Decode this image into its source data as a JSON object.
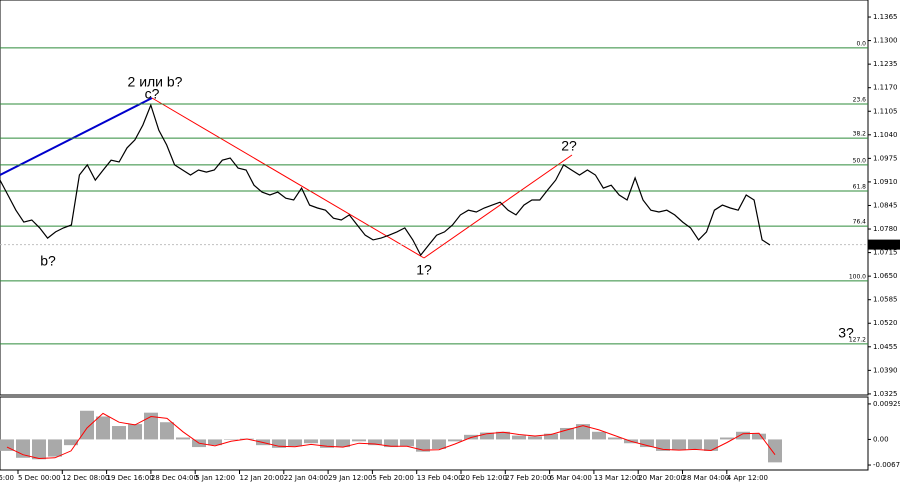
{
  "chart_data": [
    {
      "type": "line",
      "color": "#000000",
      "values": [
        1.0915,
        1.0874,
        1.0832,
        1.0799,
        1.0805,
        1.0783,
        1.0755,
        1.0772,
        1.0783,
        1.0791,
        1.0929,
        1.0957,
        1.0915,
        1.0943,
        1.097,
        1.0965,
        1.1004,
        1.1026,
        1.1067,
        1.1122,
        1.1053,
        1.1012,
        1.0957,
        1.0943,
        1.0929,
        1.0943,
        1.0937,
        1.0943,
        1.097,
        1.0976,
        1.0948,
        1.0943,
        1.0901,
        1.0882,
        1.0874,
        1.0882,
        1.0865,
        1.086,
        1.0893,
        1.0846,
        1.0838,
        1.0832,
        1.081,
        1.0805,
        1.0819,
        1.0791,
        1.0763,
        1.075,
        1.0755,
        1.0763,
        1.0772,
        1.0783,
        1.075,
        1.0708,
        1.0736,
        1.0763,
        1.0772,
        1.0791,
        1.0819,
        1.0832,
        1.0827,
        1.0838,
        1.0846,
        1.0854,
        1.0832,
        1.0819,
        1.0846,
        1.086,
        1.086,
        1.0888,
        1.0915,
        1.0957,
        1.0943,
        1.0929,
        1.0943,
        1.0929,
        1.0893,
        1.0901,
        1.0874,
        1.086,
        1.0921,
        1.086,
        1.0832,
        1.0827,
        1.0832,
        1.0819,
        1.0799,
        1.0783,
        1.075,
        1.0772,
        1.0832,
        1.0846,
        1.0838,
        1.0832,
        1.0874,
        1.086,
        1.075,
        1.0736
      ],
      "ylim": [
        1.0322,
        1.1412
      ],
      "yticks": [
        1.1365,
        {
          "value": 1.13,
          "label": "1.1300"
        },
        1.1235,
        {
          "value": 1.117,
          "label": "1.1170"
        },
        1.1105,
        {
          "value": 1.104,
          "label": "1.1040"
        },
        1.0975,
        {
          "value": 1.091,
          "label": "1.0910"
        },
        1.0845,
        {
          "value": 1.078,
          "label": "1.0780"
        },
        1.0715,
        {
          "value": 1.065,
          "label": "1.0650"
        },
        1.0585,
        {
          "value": 1.052,
          "label": "1.0520"
        },
        1.0455,
        {
          "value": 1.039,
          "label": "1.0390"
        },
        1.0325
      ],
      "last_price": 1.0737,
      "fib_color": "#2e8b3a",
      "fib_levels": [
        {
          "label": "0.0",
          "value": 1.128
        },
        {
          "label": "23.6",
          "value": 1.1125
        },
        {
          "label": "38.2",
          "value": 1.1031
        },
        {
          "label": "50.0",
          "value": 1.0957
        },
        {
          "label": "61.8",
          "value": 1.0885
        },
        {
          "label": "76.4",
          "value": 1.0788
        },
        {
          "label": "100.0",
          "value": 1.0637
        },
        {
          "label": "127.2",
          "value": 1.0463
        }
      ],
      "annotations": [
        {
          "text": "2 или b?",
          "color": "#1a1aff"
        },
        {
          "text": "c?",
          "color": "#ff0000"
        },
        {
          "text": "b?",
          "color": "#ff0000"
        },
        {
          "text": "1?",
          "color": "#ff0000"
        },
        {
          "text": "2?",
          "color": "#ff0000"
        },
        {
          "text": "3?",
          "color": "#ff0000"
        }
      ]
    },
    {
      "type": "bar",
      "series": [
        {
          "color": "#a9a9a9",
          "values": [
            -0.003,
            -0.0048,
            -0.0052,
            -0.0045,
            -0.0015,
            0.0075,
            0.006,
            0.0035,
            0.004,
            0.007,
            0.0045,
            0.0005,
            -0.002,
            -0.0015,
            0.0,
            0.0002,
            -0.0015,
            -0.0022,
            -0.0018,
            -0.001,
            -0.0022,
            -0.002,
            -0.0005,
            -0.0015,
            -0.002,
            -0.0018,
            -0.0032,
            -0.0025,
            -0.0005,
            0.0012,
            0.0018,
            0.002,
            0.001,
            0.0008,
            0.0015,
            0.003,
            0.004,
            0.002,
            0.0005,
            -0.001,
            -0.002,
            -0.003,
            -0.0028,
            -0.0025,
            -0.003,
            0.0005,
            0.002,
            0.0015,
            -0.006
          ]
        },
        {
          "color": "#ff0000",
          "values": [
            -0.002,
            -0.004,
            -0.005,
            -0.0048,
            -0.003,
            0.003,
            0.0068,
            0.0045,
            0.0038,
            0.006,
            0.0055,
            0.002,
            -0.001,
            -0.0017,
            -0.0005,
            0.0001,
            -0.0008,
            -0.0018,
            -0.0019,
            -0.0013,
            -0.0018,
            -0.002,
            -0.001,
            -0.0012,
            -0.0018,
            -0.0018,
            -0.0028,
            -0.0027,
            -0.0012,
            0.0005,
            0.0015,
            0.0019,
            0.0013,
            0.0009,
            0.0013,
            0.0025,
            0.0036,
            0.0025,
            0.001,
            -0.0005,
            -0.0016,
            -0.0026,
            -0.0028,
            -0.0026,
            -0.0029,
            -0.0008,
            0.0015,
            0.0016,
            -0.004
          ]
        }
      ],
      "ylim": [
        -0.008,
        0.0111
      ],
      "yticks": [
        0.00929,
        {
          "value": 0,
          "label": "0.00"
        },
        -0.0067
      ],
      "x_labels": [
        "6:00",
        "5 Dec 00:00",
        "12 Dec 08:00",
        "19 Dec 16:00",
        "28 Dec 04:00",
        "5 Jan 12:00",
        "12 Jan 20:00",
        "22 Jan 04:00",
        "29 Jan 12:00",
        "5 Feb 20:00",
        "13 Feb 04:00",
        "20 Feb 12:00",
        "27 Feb 20:00",
        "6 Mar 04:00",
        "13 Mar 12:00",
        "20 Mar 20:00",
        "28 Mar 04:00",
        "4 Apr 12:00"
      ]
    }
  ]
}
